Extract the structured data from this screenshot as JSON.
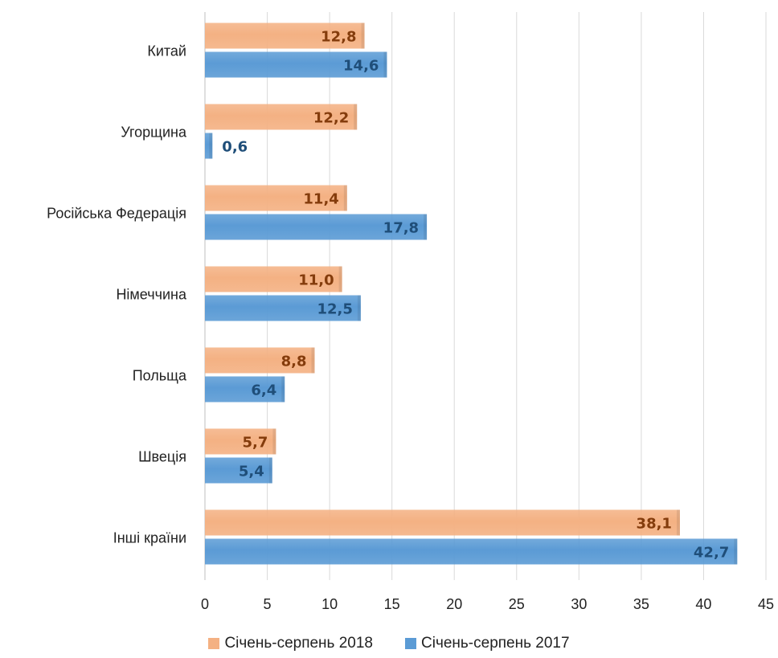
{
  "chart_data": {
    "type": "bar",
    "orientation": "horizontal",
    "categories": [
      "Китай",
      "Угорщина",
      "Російська Федерація",
      "Німеччина",
      "Польща",
      "Швеція",
      "Інші країни"
    ],
    "series": [
      {
        "name": "Січень-серпень 2018",
        "values": [
          12.8,
          12.2,
          11.4,
          11.0,
          8.8,
          5.7,
          38.1
        ],
        "labels": [
          "12,8",
          "12,2",
          "11,4",
          "11,0",
          "8,8",
          "5,7",
          "38,1"
        ],
        "color": "#F4B183",
        "label_color": "#843C0C"
      },
      {
        "name": "Січень-серпень 2017",
        "values": [
          14.6,
          0.6,
          17.8,
          12.5,
          6.4,
          5.4,
          42.7
        ],
        "labels": [
          "14,6",
          "0,6",
          "17,8",
          "12,5",
          "6,4",
          "5,4",
          "42,7"
        ],
        "color": "#5B9BD5",
        "label_color": "#1F4E79"
      }
    ],
    "xlim": [
      0,
      45
    ],
    "xticks": [
      "0",
      "5",
      "10",
      "15",
      "20",
      "25",
      "30",
      "35",
      "40",
      "45"
    ],
    "grid": true,
    "legend_position": "bottom"
  }
}
